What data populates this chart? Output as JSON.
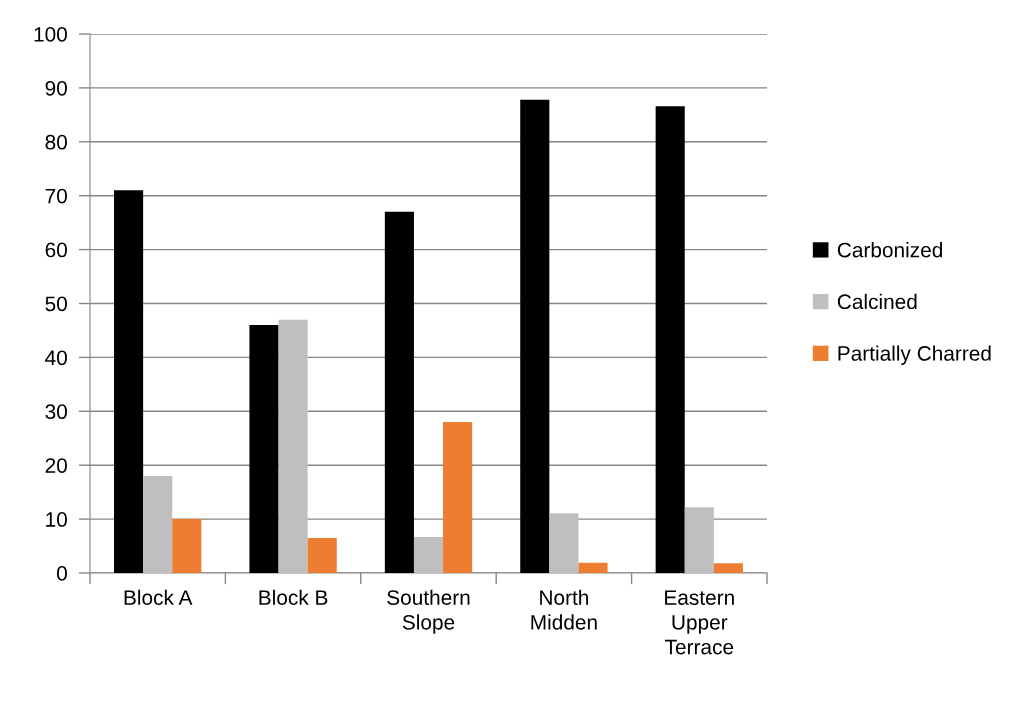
{
  "chart_data": {
    "type": "bar",
    "categories": [
      "Block A",
      "Block B",
      "Southern Slope",
      "North Midden",
      "Eastern Upper Terrace"
    ],
    "series": [
      {
        "name": "Carbonized",
        "color": "#000000",
        "values": [
          71,
          46,
          67,
          87.8,
          86.6
        ]
      },
      {
        "name": "Calcined",
        "color": "#bfbfbf",
        "values": [
          18,
          47,
          6.7,
          11.1,
          12.2
        ]
      },
      {
        "name": "Partially Charred",
        "color": "#ed7d31",
        "values": [
          10,
          6.5,
          28,
          1.9,
          1.8
        ]
      }
    ],
    "ylim": [
      0,
      100
    ],
    "yticks": [
      0,
      10,
      20,
      30,
      40,
      50,
      60,
      70,
      80,
      90,
      100
    ],
    "grid": "y",
    "legend": "right"
  }
}
